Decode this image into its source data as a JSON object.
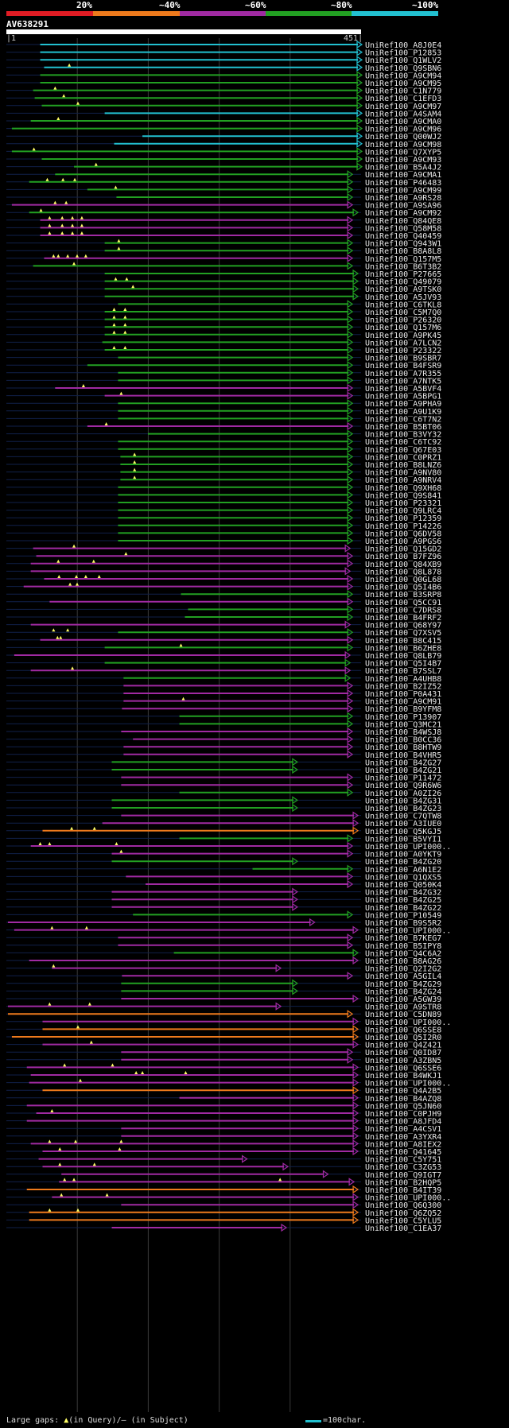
{
  "legend": {
    "labels": [
      "20%",
      "~40%",
      "~60%",
      "~80%",
      "~100%"
    ],
    "colors": [
      "#e01c24",
      "#ee7a1c",
      "#a02aa2",
      "#22a022",
      "#22c0d0"
    ]
  },
  "query": {
    "name": "AV638291",
    "start": "1",
    "end": "451",
    "length": 451
  },
  "hits": [
    [
      "UniRef100_A8J0E4",
      4,
      43,
      451,
      [],
      [],
      "normal"
    ],
    [
      "UniRef100_P12853",
      4,
      43,
      451,
      [],
      [],
      "normal"
    ],
    [
      "UniRef100_Q1WLV2",
      4,
      43,
      451,
      [],
      [],
      "normal"
    ],
    [
      "UniRef100_Q9SBN6",
      4,
      48,
      451,
      [
        80
      ],
      [],
      "normal"
    ],
    [
      "UniRef100_A9CM94",
      3,
      43,
      451,
      [],
      [],
      "normal"
    ],
    [
      "UniRef100_A9CM95",
      3,
      43,
      451,
      [],
      [],
      "normal"
    ],
    [
      "UniRef100_C1N779",
      3,
      34,
      451,
      [
        62
      ],
      [],
      "normal"
    ],
    [
      "UniRef100_C1EFD3",
      3,
      36,
      451,
      [
        73
      ],
      [],
      "normal"
    ],
    [
      "UniRef100_A9CM97",
      3,
      45,
      451,
      [
        91
      ],
      [],
      "normal"
    ],
    [
      "UniRef100_A4SAM4",
      4,
      125,
      451,
      [],
      [],
      "normal"
    ],
    [
      "UniRef100_A9CMA0",
      3,
      31,
      451,
      [
        66
      ],
      [],
      "normal"
    ],
    [
      "UniRef100_A9CM96",
      3,
      7,
      451,
      [],
      [],
      "normal"
    ],
    [
      "UniRef100_Q00WJ2",
      4,
      173,
      451,
      [],
      [],
      "normal"
    ],
    [
      "UniRef100_A9CM98",
      4,
      137,
      451,
      [],
      [],
      "normal"
    ],
    [
      "UniRef100_Q7XYP5",
      3,
      7,
      451,
      [
        35
      ],
      [],
      "normal"
    ],
    [
      "UniRef100_A9CM93",
      3,
      45,
      451,
      [],
      [],
      "normal"
    ],
    [
      "UniRef100_B5A4J2",
      3,
      86,
      451,
      [
        114
      ],
      [],
      "normal"
    ],
    [
      "UniRef100_A9CMA1",
      3,
      62,
      439,
      [],
      [],
      "normal"
    ],
    [
      "UniRef100_P46483",
      3,
      29,
      439,
      [
        52,
        72,
        87
      ],
      [],
      "normal"
    ],
    [
      "UniRef100_A9CM99",
      3,
      103,
      439,
      [
        139
      ],
      [],
      "normal"
    ],
    [
      "UniRef100_A9RS28",
      3,
      140,
      439,
      [],
      [],
      "normal"
    ],
    [
      "UniRef100_A9SA96",
      2,
      7,
      439,
      [
        62,
        76
      ],
      [],
      "normal"
    ],
    [
      "UniRef100_A9CM92",
      3,
      29,
      446,
      [
        44
      ],
      [],
      "normal"
    ],
    [
      "UniRef100_Q84QE8",
      2,
      43,
      439,
      [
        55,
        71,
        84,
        96
      ],
      [],
      "normal"
    ],
    [
      "UniRef100_Q58M58",
      2,
      43,
      439,
      [
        55,
        71,
        84,
        96
      ],
      [],
      "normal"
    ],
    [
      "UniRef100_Q40459",
      2,
      43,
      439,
      [
        55,
        71,
        84,
        96
      ],
      [],
      "normal"
    ],
    [
      "UniRef100_Q943W1",
      3,
      125,
      439,
      [
        143
      ],
      [],
      "normal"
    ],
    [
      "UniRef100_B8A8L8",
      3,
      125,
      439,
      [
        143
      ],
      [],
      "normal"
    ],
    [
      "UniRef100_Q157M5",
      2,
      48,
      439,
      [
        60,
        66,
        78,
        90,
        101
      ],
      [],
      "normal"
    ],
    [
      "UniRef100_B6T3B2",
      3,
      34,
      439,
      [
        86
      ],
      [],
      "normal"
    ],
    [
      "UniRef100_P27665",
      3,
      125,
      446,
      [],
      [],
      "normal"
    ],
    [
      "UniRef100_Q49079",
      3,
      125,
      446,
      [
        139,
        153
      ],
      [],
      "normal"
    ],
    [
      "UniRef100_A9TSK0",
      3,
      125,
      446,
      [
        161
      ],
      [],
      "normal"
    ],
    [
      "UniRef100_A5JV93",
      3,
      125,
      446,
      [],
      [],
      "normal"
    ],
    [
      "UniRef100_C6TKL8",
      3,
      142,
      439,
      [],
      [],
      "normal"
    ],
    [
      "UniRef100_C5M7Q0",
      3,
      125,
      439,
      [
        137,
        151
      ],
      [],
      "normal"
    ],
    [
      "UniRef100_P26320",
      3,
      125,
      439,
      [
        137,
        151
      ],
      [],
      "normal"
    ],
    [
      "UniRef100_Q157M6",
      3,
      125,
      439,
      [
        137,
        151
      ],
      [],
      "normal"
    ],
    [
      "UniRef100_A9PK45",
      3,
      125,
      439,
      [
        137,
        151
      ],
      [],
      "normal"
    ],
    [
      "UniRef100_A7LCN2",
      3,
      122,
      439,
      [],
      [],
      "normal"
    ],
    [
      "UniRef100_P23322",
      3,
      125,
      439,
      [
        137,
        151
      ],
      [],
      "normal"
    ],
    [
      "UniRef100_B9SBR7",
      3,
      142,
      439,
      [],
      [],
      "normal"
    ],
    [
      "UniRef100_B4FSR9",
      3,
      103,
      439,
      [],
      [],
      "normal"
    ],
    [
      "UniRef100_A7R355",
      3,
      142,
      439,
      [],
      [],
      "normal"
    ],
    [
      "UniRef100_A7NTK5",
      3,
      142,
      439,
      [],
      [],
      "normal"
    ],
    [
      "UniRef100_A5BVF4",
      2,
      62,
      439,
      [
        98
      ],
      [],
      "normal"
    ],
    [
      "UniRef100_A5BPG1",
      2,
      125,
      439,
      [
        146
      ],
      [],
      "normal"
    ],
    [
      "UniRef100_A9PHA9",
      3,
      142,
      439,
      [],
      [],
      "normal"
    ],
    [
      "UniRef100_A9U1K9",
      3,
      142,
      439,
      [],
      [],
      "normal"
    ],
    [
      "UniRef100_C6T7N2",
      3,
      142,
      439,
      [],
      [],
      "normal"
    ],
    [
      "UniRef100_B5BT06",
      2,
      103,
      439,
      [
        127
      ],
      [],
      "normal"
    ],
    [
      "UniRef100_B3VY32",
      3,
      180,
      439,
      [],
      [],
      "normal"
    ],
    [
      "UniRef100_C6TC92",
      3,
      142,
      439,
      [],
      [],
      "normal"
    ],
    [
      "UniRef100_Q67E03",
      3,
      142,
      439,
      [],
      [],
      "normal"
    ],
    [
      "UniRef100_C0PRZ1",
      3,
      145,
      439,
      [
        163
      ],
      [],
      "normal"
    ],
    [
      "UniRef100_B8LNZ6",
      3,
      145,
      439,
      [
        163
      ],
      [],
      "normal"
    ],
    [
      "UniRef100_A9NV80",
      3,
      145,
      439,
      [
        163
      ],
      [],
      "normal"
    ],
    [
      "UniRef100_A9NRV4",
      3,
      145,
      439,
      [
        163
      ],
      [],
      "normal"
    ],
    [
      "UniRef100_Q9XH68",
      3,
      142,
      439,
      [],
      [],
      "normal"
    ],
    [
      "UniRef100_Q9S841",
      3,
      142,
      439,
      [],
      [],
      "normal"
    ],
    [
      "UniRef100_P23321",
      3,
      142,
      439,
      [],
      [],
      "normal"
    ],
    [
      "UniRef100_Q9LRC4",
      3,
      142,
      439,
      [],
      [],
      "normal"
    ],
    [
      "UniRef100_P12359",
      3,
      142,
      439,
      [],
      [],
      "normal"
    ],
    [
      "UniRef100_P14226",
      3,
      142,
      439,
      [],
      [],
      "normal"
    ],
    [
      "UniRef100_Q6DV58",
      3,
      142,
      439,
      [],
      [],
      "normal"
    ],
    [
      "UniRef100_A9PGS6",
      3,
      142,
      439,
      [],
      [],
      "normal"
    ],
    [
      "UniRef100_Q15GD2",
      2,
      34,
      436,
      [
        86
      ],
      [
        155
      ],
      "normal"
    ],
    [
      "UniRef100_B7FZ96",
      2,
      38,
      439,
      [
        152
      ],
      [],
      "normal"
    ],
    [
      "UniRef100_Q84XB9",
      2,
      31,
      439,
      [
        66,
        111
      ],
      [
        152
      ],
      "normal"
    ],
    [
      "UniRef100_Q8L878",
      2,
      31,
      436,
      [],
      [],
      "normal"
    ],
    [
      "UniRef100_Q0GL68",
      2,
      48,
      439,
      [
        67,
        89,
        101,
        118
      ],
      [
        154
      ],
      "normal"
    ],
    [
      "UniRef100_Q5I4B6",
      2,
      22,
      439,
      [
        81,
        90
      ],
      [],
      "normal"
    ],
    [
      "UniRef100_B3SRP8",
      3,
      222,
      439,
      [],
      [],
      "normal"
    ],
    [
      "UniRef100_Q5CC91",
      2,
      55,
      439,
      [],
      [],
      "normal"
    ],
    [
      "UniRef100_C7DRS8",
      3,
      231,
      439,
      [],
      [],
      "normal"
    ],
    [
      "UniRef100_B4FRF2",
      3,
      227,
      439,
      [],
      [],
      "normal"
    ],
    [
      "UniRef100_Q68Y97",
      2,
      31,
      436,
      [],
      [],
      "normal"
    ],
    [
      "UniRef100_Q7XSV5",
      3,
      142,
      439,
      [
        60,
        78
      ],
      [
        228
      ],
      "normal"
    ],
    [
      "UniRef100_B8C415",
      2,
      43,
      439,
      [
        65,
        69
      ],
      [],
      "normal"
    ],
    [
      "UniRef100_B6ZHE8",
      3,
      125,
      439,
      [
        222
      ],
      [],
      "normal"
    ],
    [
      "UniRef100_Q8LB79",
      2,
      10,
      436,
      [],
      [],
      "normal"
    ],
    [
      "UniRef100_Q5I4B7",
      3,
      125,
      436,
      [],
      [],
      "normal"
    ],
    [
      "UniRef100_B7SSL7",
      2,
      31,
      436,
      [
        84
      ],
      [],
      "normal"
    ],
    [
      "UniRef100_A4UHB8",
      3,
      149,
      436,
      [],
      [],
      "normal"
    ],
    [
      "UniRef100_B2IZ52",
      2,
      149,
      439,
      [],
      [],
      "normal"
    ],
    [
      "UniRef100_P0A431",
      2,
      149,
      439,
      [],
      [],
      "normal"
    ],
    [
      "UniRef100_A9CM91",
      2,
      149,
      439,
      [
        225
      ],
      [],
      "normal"
    ],
    [
      "UniRef100_B9YFM8",
      2,
      147,
      439,
      [],
      [],
      "normal"
    ],
    [
      "UniRef100_P13907",
      3,
      220,
      439,
      [],
      [],
      "normal"
    ],
    [
      "UniRef100_Q3MC21",
      3,
      220,
      439,
      [],
      [],
      "normal"
    ],
    [
      "UniRef100_B4WSJ8",
      2,
      146,
      439,
      [],
      [],
      "normal"
    ],
    [
      "UniRef100_B0CC36",
      2,
      161,
      439,
      [],
      [],
      "normal"
    ],
    [
      "UniRef100_B8HTW9",
      2,
      149,
      439,
      [],
      [],
      "normal"
    ],
    [
      "UniRef100_B4VHR5",
      2,
      149,
      439,
      [],
      [],
      "normal"
    ],
    [
      "UniRef100_B4ZG27",
      3,
      134,
      369,
      [],
      [],
      "normal"
    ],
    [
      "UniRef100_B4ZG21",
      3,
      134,
      369,
      [],
      [],
      "normal"
    ],
    [
      "UniRef100_P11472",
      2,
      146,
      439,
      [],
      [],
      "normal"
    ],
    [
      "UniRef100_Q9R6W6",
      2,
      146,
      439,
      [],
      [],
      "normal"
    ],
    [
      "UniRef100_A0ZI26",
      3,
      220,
      439,
      [],
      [],
      "normal"
    ],
    [
      "UniRef100_B4ZG31",
      3,
      134,
      369,
      [],
      [],
      "normal"
    ],
    [
      "UniRef100_B4ZG23",
      3,
      134,
      369,
      [],
      [],
      "normal"
    ],
    [
      "UniRef100_C7QTW8",
      2,
      146,
      446,
      [],
      [],
      "normal"
    ],
    [
      "UniRef100_A3IUE0",
      2,
      122,
      446,
      [],
      [],
      "normal"
    ],
    [
      "UniRef100_Q5KGJ5",
      1,
      46,
      446,
      [
        83,
        112
      ],
      [],
      "normal"
    ],
    [
      "UniRef100_B5VYI1",
      3,
      220,
      439,
      [],
      [],
      "normal"
    ],
    [
      "UniRef100_UPI000..",
      2,
      31,
      439,
      [
        43,
        55,
        140
      ],
      [],
      "trunc"
    ],
    [
      "UniRef100_A0YKT9",
      2,
      134,
      439,
      [
        146
      ],
      [],
      "normal"
    ],
    [
      "UniRef100_B4ZG20",
      3,
      134,
      369,
      [],
      [],
      "normal"
    ],
    [
      "UniRef100_A6N1E2",
      3,
      313,
      439,
      [],
      [],
      "normal"
    ],
    [
      "UniRef100_Q1QXS5",
      2,
      152,
      439,
      [],
      [],
      "normal"
    ],
    [
      "UniRef100_Q050K4",
      2,
      177,
      439,
      [],
      [],
      "normal"
    ],
    [
      "UniRef100_B4ZG32",
      2,
      134,
      369,
      [],
      [],
      "normal"
    ],
    [
      "UniRef100_B4ZG25",
      2,
      134,
      369,
      [],
      [],
      "normal"
    ],
    [
      "UniRef100_B4ZG22",
      2,
      134,
      369,
      [],
      [],
      "normal"
    ],
    [
      "UniRef100_P10549",
      3,
      161,
      439,
      [],
      [],
      "normal"
    ],
    [
      "UniRef100_B9S5R2",
      2,
      2,
      391,
      [],
      [],
      "normal"
    ],
    [
      "UniRef100_UPI000..",
      2,
      10,
      446,
      [
        58,
        102
      ],
      [],
      "trunc"
    ],
    [
      "UniRef100_B7KEG7",
      2,
      142,
      439,
      [],
      [],
      "normal"
    ],
    [
      "UniRef100_B5IPY8",
      2,
      142,
      439,
      [],
      [],
      "normal"
    ],
    [
      "UniRef100_Q4C6A2",
      3,
      213,
      446,
      [],
      [],
      "normal"
    ],
    [
      "UniRef100_B8AG26",
      2,
      29,
      446,
      [],
      [],
      "normal"
    ],
    [
      "UniRef100_Q2I2G2",
      2,
      58,
      348,
      [
        60
      ],
      [],
      "normal"
    ],
    [
      "UniRef100_A5GIL4",
      2,
      147,
      439,
      [],
      [],
      "normal"
    ],
    [
      "UniRef100_B4ZG29",
      3,
      146,
      369,
      [],
      [],
      "normal"
    ],
    [
      "UniRef100_B4ZG24",
      3,
      146,
      369,
      [],
      [],
      "normal"
    ],
    [
      "UniRef100_A5GW39",
      2,
      146,
      446,
      [],
      [],
      "normal"
    ],
    [
      "UniRef100_A9STR8",
      2,
      2,
      348,
      [
        55,
        106
      ],
      [],
      "normal"
    ],
    [
      "UniRef100_C5DN89",
      1,
      2,
      439,
      [],
      [],
      "normal"
    ],
    [
      "UniRef100_UPI000..",
      2,
      46,
      446,
      [],
      [],
      "trunc"
    ],
    [
      "UniRef100_Q6SSE8",
      1,
      46,
      446,
      [
        91
      ],
      [],
      "normal"
    ],
    [
      "UniRef100_Q5I2R0",
      1,
      7,
      446,
      [],
      [],
      "normal"
    ],
    [
      "UniRef100_Q4Z421",
      2,
      46,
      446,
      [
        108
      ],
      [],
      "normal"
    ],
    [
      "UniRef100_Q0ID87",
      2,
      146,
      439,
      [],
      [],
      "normal"
    ],
    [
      "UniRef100_A3ZBN5",
      2,
      146,
      439,
      [],
      [],
      "normal"
    ],
    [
      "UniRef100_Q6SSE6",
      2,
      26,
      446,
      [
        74,
        135
      ],
      [],
      "normal"
    ],
    [
      "UniRef100_B4WKJ1",
      2,
      31,
      446,
      [
        165,
        173,
        228
      ],
      [],
      "normal"
    ],
    [
      "UniRef100_UPI000..",
      2,
      29,
      446,
      [
        94
      ],
      [],
      "trunc"
    ],
    [
      "UniRef100_Q4A2B5",
      1,
      46,
      446,
      [],
      [],
      "normal"
    ],
    [
      "UniRef100_B4AZQ8",
      2,
      220,
      446,
      [],
      [],
      "normal"
    ],
    [
      "UniRef100_Q5JN60",
      2,
      26,
      446,
      [],
      [],
      "normal"
    ],
    [
      "UniRef100_C0PJH9",
      2,
      38,
      446,
      [
        58
      ],
      [],
      "normal"
    ],
    [
      "UniRef100_A8JFD4",
      2,
      26,
      446,
      [],
      [],
      "normal"
    ],
    [
      "UniRef100_A4CSV1",
      2,
      146,
      446,
      [],
      [],
      "normal"
    ],
    [
      "UniRef100_A3YXR4",
      2,
      146,
      446,
      [],
      [],
      "normal"
    ],
    [
      "UniRef100_A8IEX2",
      2,
      31,
      446,
      [
        55,
        88,
        146
      ],
      [],
      "normal"
    ],
    [
      "UniRef100_Q41645",
      2,
      46,
      446,
      [
        68,
        144
      ],
      [],
      "normal"
    ],
    [
      "UniRef100_C5Y751",
      2,
      41,
      305,
      [],
      [],
      "normal"
    ],
    [
      "UniRef100_C3ZG53",
      2,
      46,
      357,
      [
        68,
        112
      ],
      [],
      "normal"
    ],
    [
      "UniRef100_Q9IGT7",
      2,
      70,
      408,
      [],
      [],
      "normal"
    ],
    [
      "UniRef100_B2HQP5",
      2,
      67,
      441,
      [
        74,
        86,
        348
      ],
      [],
      "normal"
    ],
    [
      "UniRef100_B4IT39",
      1,
      26,
      446,
      [],
      [],
      "normal"
    ],
    [
      "UniRef100_UPI000..",
      2,
      58,
      446,
      [
        70,
        128
      ],
      [],
      "trunc"
    ],
    [
      "UniRef100_Q6Q300",
      2,
      146,
      446,
      [],
      [],
      "normal"
    ],
    [
      "UniRef100_Q6ZQ52",
      1,
      29,
      446,
      [
        55,
        91
      ],
      [],
      "normal"
    ],
    [
      "UniRef100_C5YLU5",
      1,
      29,
      446,
      [],
      [],
      "normal"
    ],
    [
      "UniRef100_C1EA37",
      2,
      134,
      355,
      [],
      [],
      "normal"
    ]
  ],
  "footer": {
    "gaps_prefix": "Large gaps:",
    "gaps_in_query": "(in Query)/",
    "gaps_in_subject": "– (in Subject)",
    "scale_text": "=100char."
  }
}
